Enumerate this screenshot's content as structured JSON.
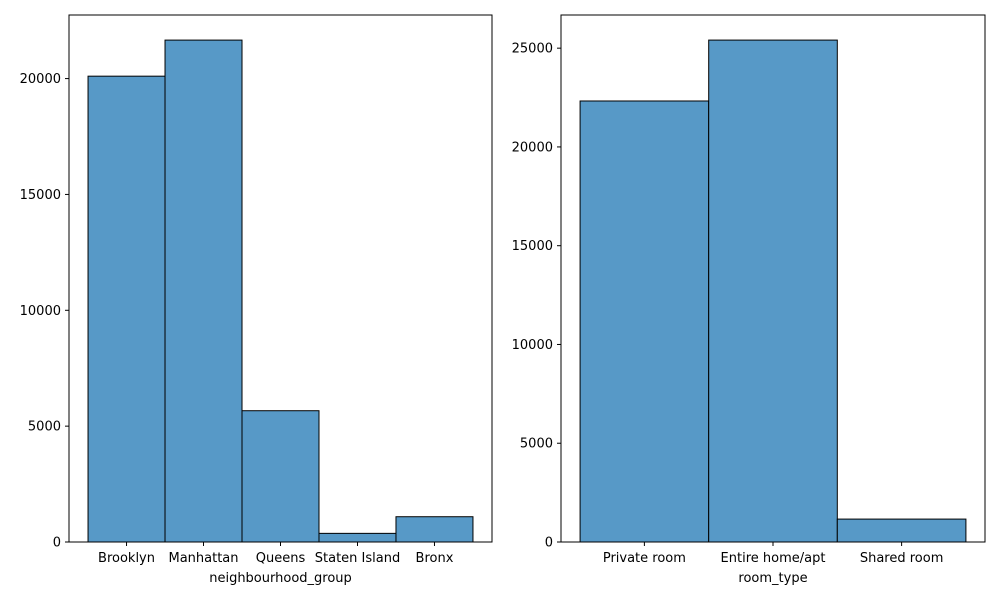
{
  "chart_data": [
    {
      "type": "bar",
      "xlabel": "neighbourhood_group",
      "ylabel": "",
      "categories": [
        "Brooklyn",
        "Manhattan",
        "Queens",
        "Staten Island",
        "Bronx"
      ],
      "values": [
        20104,
        21661,
        5666,
        373,
        1091
      ],
      "ylim": [
        0,
        22744
      ],
      "yticks": [
        0,
        5000,
        10000,
        15000,
        20000
      ],
      "grid": false,
      "bar_color": "#5799c7",
      "edge_color": "#000000"
    },
    {
      "type": "bar",
      "xlabel": "room_type",
      "ylabel": "",
      "categories": [
        "Private room",
        "Entire home/apt",
        "Shared room"
      ],
      "values": [
        22326,
        25409,
        1160
      ],
      "ylim": [
        0,
        26679
      ],
      "yticks": [
        0,
        5000,
        10000,
        15000,
        20000,
        25000
      ],
      "grid": false,
      "bar_color": "#5799c7",
      "edge_color": "#000000"
    }
  ]
}
